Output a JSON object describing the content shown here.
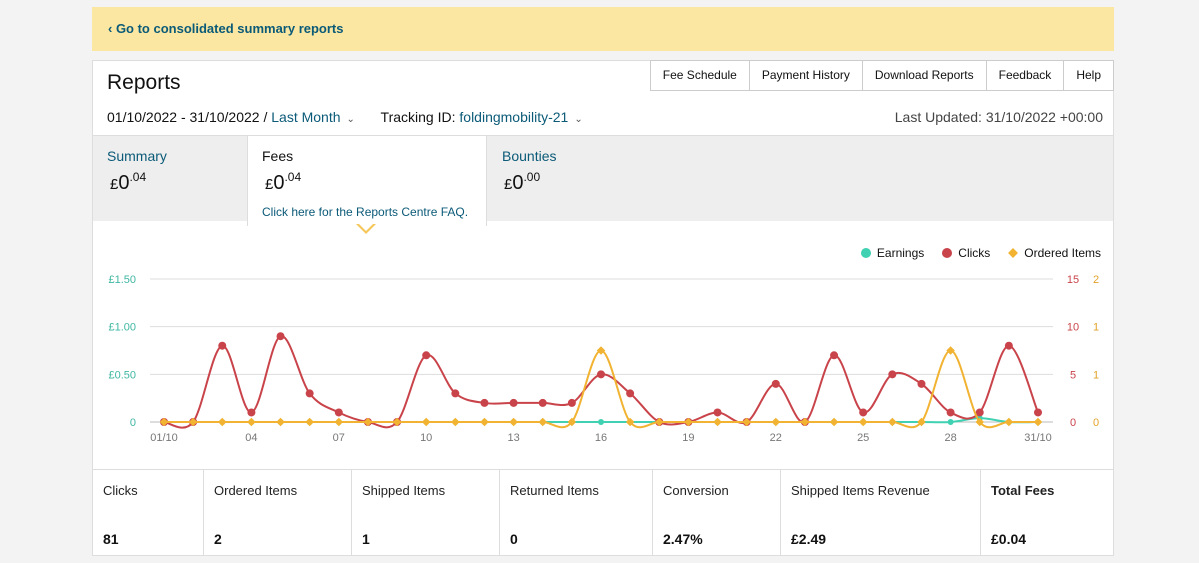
{
  "banner": {
    "link": "‹ Go to consolidated summary reports"
  },
  "page_title": "Reports",
  "nav": [
    "Fee Schedule",
    "Payment History",
    "Download Reports",
    "Feedback",
    "Help"
  ],
  "filters": {
    "date_range": "01/10/2022 - 31/10/2022 / ",
    "period": "Last Month",
    "tracking_label": "Tracking ID: ",
    "tracking_id": "foldingmobility-21",
    "last_updated": "Last Updated: 31/10/2022 +00:00"
  },
  "tabs": [
    {
      "name": "Summary",
      "currency": "£",
      "whole": "0",
      "fraction": ".04"
    },
    {
      "name": "Fees",
      "currency": "£",
      "whole": "0",
      "fraction": ".04",
      "faq": "Click here for the Reports Centre FAQ."
    },
    {
      "name": "Bounties",
      "currency": "£",
      "whole": "0",
      "fraction": ".00"
    }
  ],
  "legend": [
    {
      "label": "Earnings",
      "color": "#3fd1b2"
    },
    {
      "label": "Clicks",
      "color": "#c9434a"
    },
    {
      "label": "Ordered Items",
      "color": "#f1b331"
    }
  ],
  "chart_data": {
    "type": "line",
    "x": [
      "01/10",
      "02/10",
      "03/10",
      "04/10",
      "05/10",
      "06/10",
      "07/10",
      "08/10",
      "09/10",
      "10/10",
      "11/10",
      "12/10",
      "13/10",
      "14/10",
      "15/10",
      "16/10",
      "17/10",
      "18/10",
      "19/10",
      "20/10",
      "21/10",
      "22/10",
      "23/10",
      "24/10",
      "25/10",
      "26/10",
      "27/10",
      "28/10",
      "29/10",
      "30/10",
      "31/10"
    ],
    "x_tick_labels": [
      "01/10",
      "04",
      "07",
      "10",
      "13",
      "16",
      "19",
      "22",
      "25",
      "28",
      "31/10"
    ],
    "y_left_ticks": [
      "0",
      "£0.50",
      "£1.00",
      "£1.50"
    ],
    "y_clicks_ticks": [
      "0",
      "5",
      "10",
      "15"
    ],
    "y_items_ticks": [
      "0",
      "1",
      "1",
      "2"
    ],
    "ylim_earnings": [
      0,
      1.5
    ],
    "ylim_clicks": [
      0,
      15
    ],
    "ylim_items": [
      0,
      2
    ],
    "series": [
      {
        "name": "Earnings",
        "axis": "earnings",
        "color": "#3fd1b2",
        "values": [
          0,
          0,
          0,
          0,
          0,
          0,
          0,
          0,
          0,
          0,
          0,
          0,
          0,
          0,
          0,
          0,
          0,
          0,
          0,
          0,
          0,
          0,
          0,
          0,
          0,
          0,
          0,
          0,
          0.04,
          0,
          0
        ]
      },
      {
        "name": "Clicks",
        "axis": "clicks",
        "color": "#c9434a",
        "values": [
          0,
          0,
          8,
          1,
          9,
          3,
          1,
          0,
          0,
          7,
          3,
          2,
          2,
          2,
          2,
          5,
          3,
          0,
          0,
          1,
          0,
          4,
          0,
          7,
          1,
          5,
          4,
          1,
          1,
          8,
          1
        ]
      },
      {
        "name": "Ordered Items",
        "axis": "items",
        "color": "#f1b331",
        "values": [
          0,
          0,
          0,
          0,
          0,
          0,
          0,
          0,
          0,
          0,
          0,
          0,
          0,
          0,
          0,
          1,
          0,
          0,
          0,
          0,
          0,
          0,
          0,
          0,
          0,
          0,
          0,
          1,
          0,
          0,
          0
        ]
      }
    ]
  },
  "stats": [
    {
      "label": "Clicks",
      "value": "81"
    },
    {
      "label": "Ordered Items",
      "value": "2"
    },
    {
      "label": "Shipped Items",
      "value": "1"
    },
    {
      "label": "Returned Items",
      "value": "0"
    },
    {
      "label": "Conversion",
      "value": "2.47%"
    },
    {
      "label": "Shipped Items Revenue",
      "value": "£2.49"
    },
    {
      "label": "Total Fees",
      "value": "£0.04"
    }
  ]
}
